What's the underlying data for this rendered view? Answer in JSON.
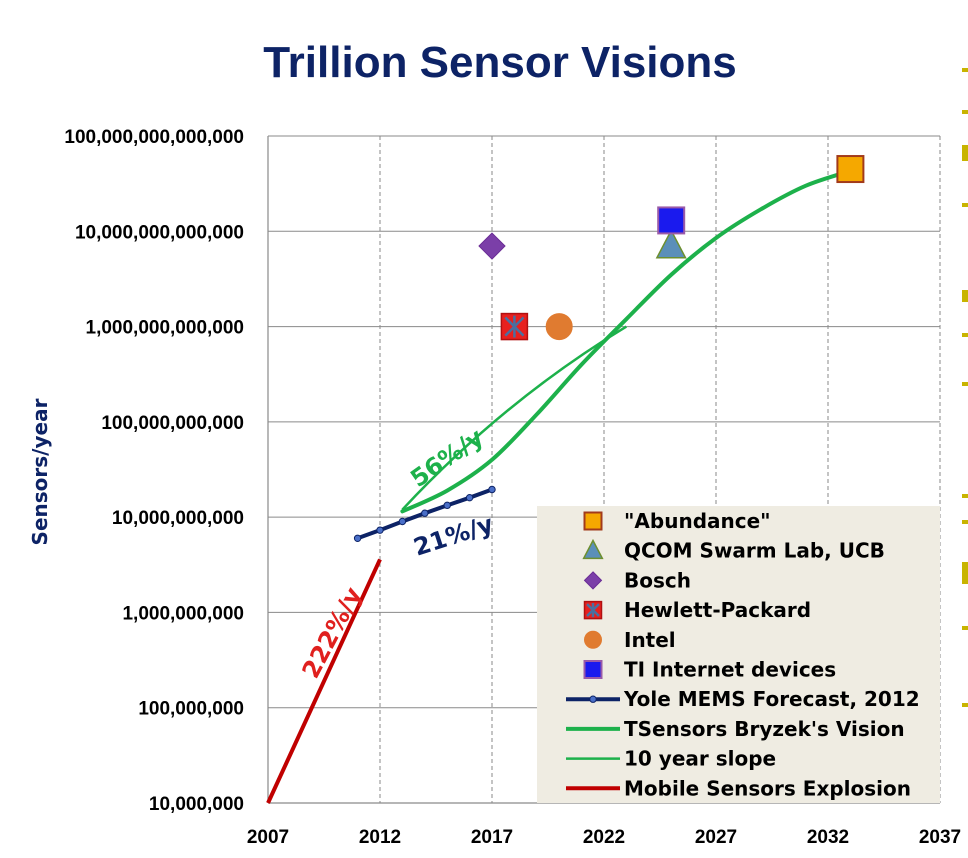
{
  "chart_data": {
    "type": "scatter",
    "title": "Trillion Sensor Visions",
    "ylabel": "Sensors/year",
    "xlabel": "",
    "y_scale": "log",
    "xlim": [
      2007,
      2037
    ],
    "ylim": [
      10000000,
      100000000000000
    ],
    "x_ticks": [
      "2007",
      "2012",
      "2017",
      "2022",
      "2027",
      "2032",
      "2037"
    ],
    "y_ticks": [
      "10,000,000",
      "100,000,000",
      "1,000,000,000",
      "10,000,000,000",
      "100,000,000,000",
      "1,000,000,000,000",
      "10,000,000,000,000",
      "100,000,000,000,000"
    ],
    "grid": true,
    "legend_position": "bottom-right",
    "series": [
      {
        "name": "\"Abundance\"",
        "kind": "point",
        "marker": "square",
        "color": "#f5a800",
        "edge": "#a23a1a",
        "points": [
          [
            2033,
            45000000000000
          ]
        ]
      },
      {
        "name": "QCOM Swarm Lab, UCB",
        "kind": "point",
        "marker": "triangle",
        "color": "#5b8fb9",
        "edge": "#6d8f2f",
        "points": [
          [
            2025,
            7000000000000
          ]
        ]
      },
      {
        "name": "Bosch",
        "kind": "point",
        "marker": "diamond",
        "color": "#7b3fa8",
        "edge": "#6a2c95",
        "points": [
          [
            2017,
            7000000000000
          ]
        ]
      },
      {
        "name": "Hewlett-Packard",
        "kind": "point",
        "marker": "xsquare",
        "color": "#e8201e",
        "edge": "#4a6fa0",
        "points": [
          [
            2018,
            1000000000000
          ]
        ]
      },
      {
        "name": "Intel",
        "kind": "point",
        "marker": "circle",
        "color": "#e07b30",
        "edge": "#e07b30",
        "points": [
          [
            2020,
            1000000000000
          ]
        ]
      },
      {
        "name": "TI Internet devices",
        "kind": "point",
        "marker": "square",
        "color": "#1a1aee",
        "edge": "#9a5aa8",
        "points": [
          [
            2025,
            13000000000000
          ]
        ]
      },
      {
        "name": "Yole MEMS Forecast, 2012",
        "kind": "line",
        "marker": "dot",
        "color": "#0d2366",
        "width": 4,
        "points": [
          [
            2011,
            6000000000
          ],
          [
            2012,
            7300000000
          ],
          [
            2013,
            9000000000
          ],
          [
            2014,
            11000000000
          ],
          [
            2015,
            13300000000
          ],
          [
            2016,
            16000000000
          ],
          [
            2017,
            19500000000
          ]
        ]
      },
      {
        "name": "TSensors Bryzek's Vision",
        "kind": "line",
        "color": "#1db14b",
        "width": 4,
        "points": [
          [
            2013,
            11500000000
          ],
          [
            2015,
            19000000000
          ],
          [
            2017,
            40000000000
          ],
          [
            2019,
            120000000000
          ],
          [
            2021,
            400000000000
          ],
          [
            2023,
            1200000000000
          ],
          [
            2025,
            3500000000000
          ],
          [
            2027,
            8500000000000
          ],
          [
            2029,
            17000000000000
          ],
          [
            2031,
            30000000000000
          ],
          [
            2033,
            43000000000000
          ]
        ]
      },
      {
        "name": "10 year slope",
        "kind": "line",
        "color": "#1db14b",
        "width": 2.5,
        "points": [
          [
            2013,
            12000000000
          ],
          [
            2023,
            1000000000000
          ]
        ]
      },
      {
        "name": "Mobile Sensors Explosion",
        "kind": "line",
        "color": "#c00000",
        "width": 4,
        "points": [
          [
            2007,
            10000000
          ],
          [
            2012,
            3600000000
          ]
        ]
      }
    ],
    "annotations": [
      {
        "text": "56%/y",
        "color": "#1db14b"
      },
      {
        "text": "21%/y",
        "color": "#0d2366"
      },
      {
        "text": "222%/y",
        "color": "#e0201e"
      }
    ]
  }
}
